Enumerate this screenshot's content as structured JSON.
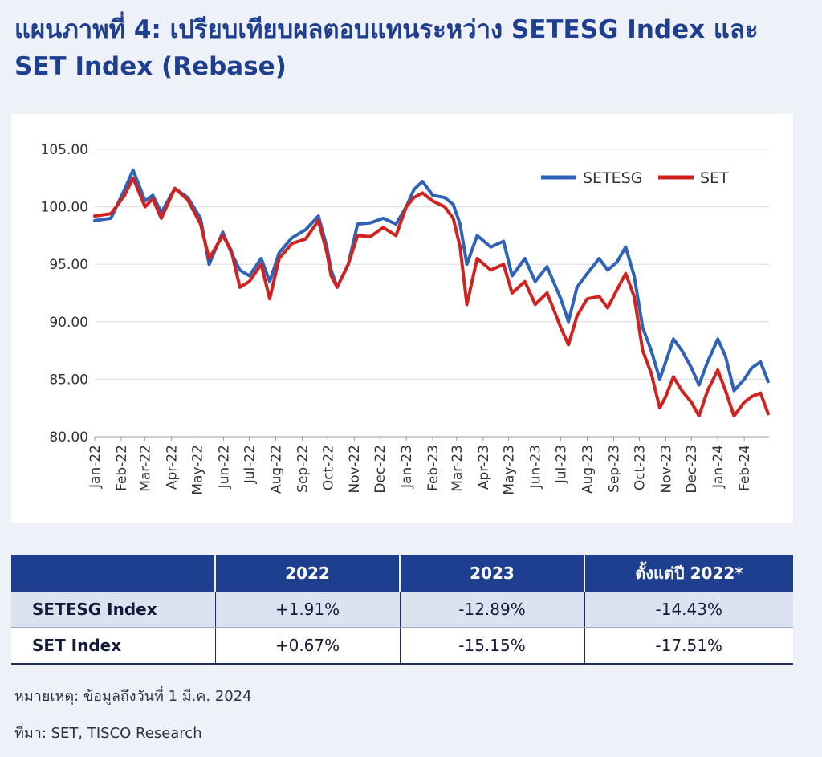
{
  "title": "แผนภาพที่ 4: เปรียบเทียบผลตอบแทนระหว่าง SETESG Index และ SET Index (Rebase)",
  "colors": {
    "setesg": "#2e63b8",
    "set": "#d0221f",
    "header": "#1e3f8f",
    "accent": "#dbe3f1"
  },
  "chart_data": {
    "type": "line",
    "title": "",
    "xlabel": "",
    "ylabel": "",
    "ylim": [
      80,
      105
    ],
    "yticks": [
      "80.00",
      "85.00",
      "90.00",
      "95.00",
      "100.00",
      "105.00"
    ],
    "x_tick_labels": [
      "Jan-22",
      "Feb-22",
      "Mar-22",
      "Apr-22",
      "May-22",
      "Jun-22",
      "Jul-22",
      "Aug-22",
      "Sep-22",
      "Oct-22",
      "Nov-22",
      "Dec-22",
      "Jan-23",
      "Feb-23",
      "Mar-23",
      "Apr-23",
      "May-23",
      "Jun-23",
      "Jul-23",
      "Aug-23",
      "Sep-23",
      "Oct-23",
      "Nov-23",
      "Dec-23",
      "Jan-24",
      "Feb-24"
    ],
    "grid": true,
    "legend_position": "top-right",
    "x": [
      "2022-01-01",
      "2022-01-20",
      "2022-02-05",
      "2022-02-15",
      "2022-03-01",
      "2022-03-10",
      "2022-03-20",
      "2022-04-05",
      "2022-04-20",
      "2022-05-05",
      "2022-05-15",
      "2022-05-31",
      "2022-06-10",
      "2022-06-20",
      "2022-07-01",
      "2022-07-15",
      "2022-07-25",
      "2022-08-05",
      "2022-08-20",
      "2022-09-05",
      "2022-09-20",
      "2022-09-30",
      "2022-10-05",
      "2022-10-12",
      "2022-10-25",
      "2022-11-05",
      "2022-11-20",
      "2022-12-05",
      "2022-12-20",
      "2023-01-01",
      "2023-01-10",
      "2023-01-20",
      "2023-02-01",
      "2023-02-15",
      "2023-02-25",
      "2023-03-05",
      "2023-03-13",
      "2023-03-25",
      "2023-04-10",
      "2023-04-25",
      "2023-05-05",
      "2023-05-20",
      "2023-06-01",
      "2023-06-15",
      "2023-07-01",
      "2023-07-10",
      "2023-07-20",
      "2023-08-01",
      "2023-08-15",
      "2023-08-25",
      "2023-09-05",
      "2023-09-15",
      "2023-09-25",
      "2023-10-05",
      "2023-10-15",
      "2023-10-25",
      "2023-11-01",
      "2023-11-10",
      "2023-11-20",
      "2023-12-01",
      "2023-12-10",
      "2023-12-20",
      "2024-01-01",
      "2024-01-10",
      "2024-01-20",
      "2024-02-01",
      "2024-02-10",
      "2024-02-20",
      "2024-02-29"
    ],
    "series": [
      {
        "name": "SETESG",
        "values": [
          98.8,
          99.0,
          101.5,
          103.2,
          100.5,
          101.0,
          99.5,
          101.6,
          100.8,
          99.0,
          95.0,
          97.8,
          96.0,
          94.5,
          94.0,
          95.5,
          93.5,
          96.0,
          97.3,
          98.0,
          99.2,
          96.5,
          94.5,
          93.0,
          95.0,
          98.5,
          98.6,
          99.0,
          98.5,
          100.0,
          101.5,
          102.2,
          101.0,
          100.8,
          100.2,
          98.5,
          95.0,
          97.5,
          96.5,
          97.0,
          94.0,
          95.5,
          93.5,
          94.8,
          92.0,
          90.0,
          93.0,
          94.2,
          95.5,
          94.5,
          95.2,
          96.5,
          94.0,
          89.5,
          87.5,
          85.0,
          86.5,
          88.5,
          87.5,
          86.0,
          84.5,
          86.5,
          88.5,
          87.0,
          84.0,
          85.0,
          86.0,
          86.5,
          84.8
        ]
      },
      {
        "name": "SET",
        "values": [
          99.2,
          99.4,
          101.0,
          102.5,
          100.0,
          100.7,
          99.0,
          101.6,
          100.6,
          98.5,
          95.5,
          97.5,
          96.2,
          93.0,
          93.5,
          95.0,
          92.0,
          95.5,
          96.8,
          97.2,
          98.8,
          96.0,
          94.0,
          93.0,
          95.0,
          97.5,
          97.4,
          98.2,
          97.5,
          100.0,
          100.8,
          101.2,
          100.5,
          100.0,
          99.0,
          96.5,
          91.5,
          95.5,
          94.5,
          95.0,
          92.5,
          93.5,
          91.5,
          92.5,
          89.5,
          88.0,
          90.5,
          92.0,
          92.2,
          91.2,
          92.8,
          94.2,
          92.2,
          87.5,
          85.5,
          82.5,
          83.5,
          85.2,
          84.0,
          83.0,
          81.8,
          84.0,
          85.8,
          84.0,
          81.8,
          83.0,
          83.5,
          83.8,
          82.0
        ]
      }
    ]
  },
  "table": {
    "headers": [
      "",
      "2022",
      "2023",
      "ตั้งแต่ปี 2022*"
    ],
    "rows": [
      {
        "label": "SETESG Index",
        "values": [
          "+1.91%",
          "-12.89%",
          "-14.43%"
        ]
      },
      {
        "label": "SET Index",
        "values": [
          "+0.67%",
          "-15.15%",
          "-17.51%"
        ]
      }
    ]
  },
  "notes": {
    "remark": "หมายเหตุ: ข้อมูลถึงวันที่ 1 มี.ค. 2024",
    "source": "ที่มา: SET, TISCO Research"
  }
}
